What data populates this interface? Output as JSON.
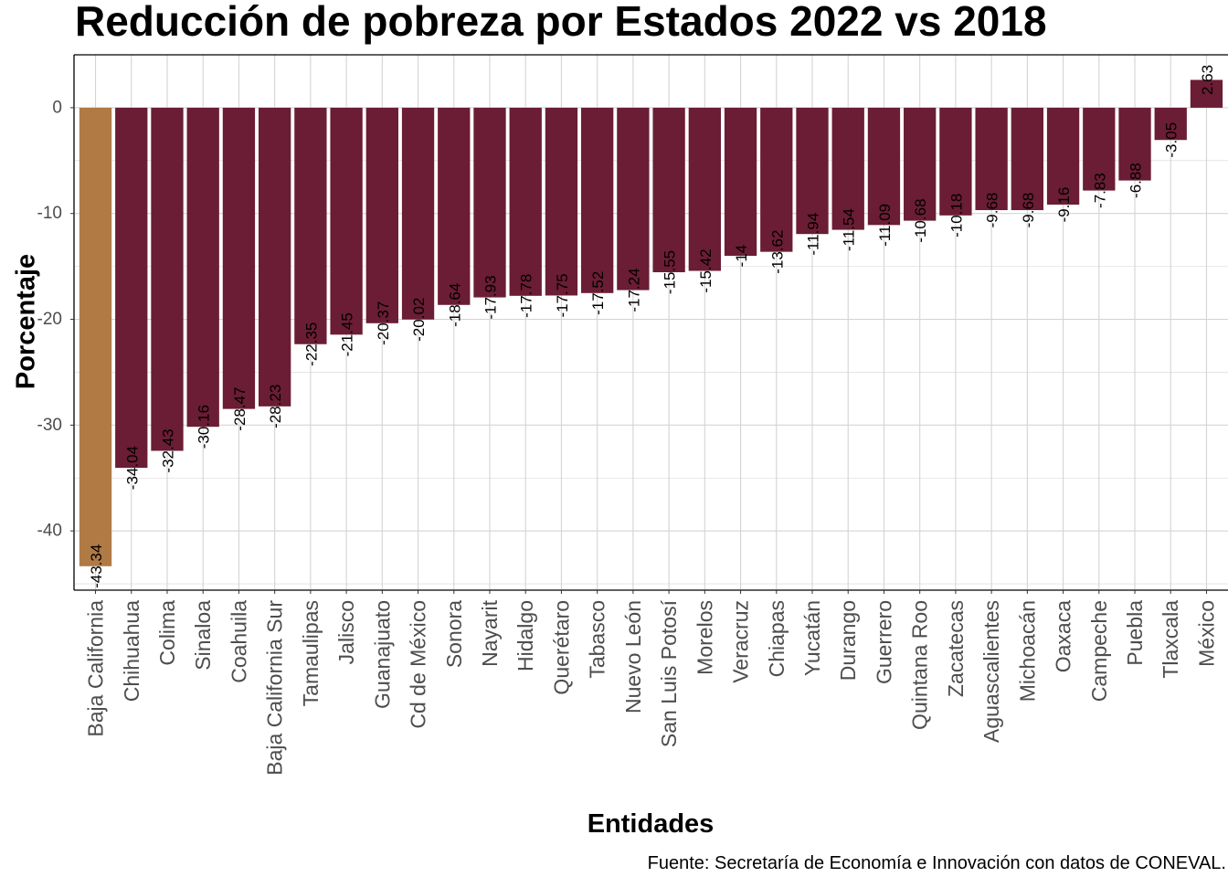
{
  "chart_data": {
    "type": "bar",
    "title": "Reducción de pobreza por Estados 2022 vs 2018",
    "xlabel": "Entidades",
    "ylabel": "Porcentaje",
    "caption": "Fuente: Secretaría de Economía e Innovación con datos de CONEVAL.",
    "categories": [
      "Baja California",
      "Chihuahua",
      "Colima",
      "Sinaloa",
      "Coahuila",
      "Baja California Sur",
      "Tamaulipas",
      "Jalisco",
      "Guanajuato",
      "Cd de México",
      "Sonora",
      "Nayarit",
      "Hidalgo",
      "Querétaro",
      "Tabasco",
      "Nuevo León",
      "San Luis Potosí",
      "Morelos",
      "Veracruz",
      "Chiapas",
      "Yucatán",
      "Durango",
      "Guerrero",
      "Quintana Roo",
      "Zacatecas",
      "Aguascalientes",
      "Michoacán",
      "Oaxaca",
      "Campeche",
      "Puebla",
      "Tlaxcala",
      "México"
    ],
    "values": [
      -43.34,
      -34.04,
      -32.43,
      -30.16,
      -28.47,
      -28.23,
      -22.35,
      -21.45,
      -20.37,
      -20.02,
      -18.64,
      -17.93,
      -17.78,
      -17.75,
      -17.52,
      -17.24,
      -15.55,
      -15.42,
      -14,
      -13.62,
      -11.94,
      -11.54,
      -11.09,
      -10.68,
      -10.18,
      -9.68,
      -9.68,
      -9.16,
      -7.83,
      -6.88,
      -3.05,
      2.63
    ],
    "value_labels": [
      "-43.34",
      "-34.04",
      "-32.43",
      "-30.16",
      "-28.47",
      "-28.23",
      "-22.35",
      "-21.45",
      "-20.37",
      "-20.02",
      "-18.64",
      "-17.93",
      "-17.78",
      "-17.75",
      "-17.52",
      "-17.24",
      "-15.55",
      "-15.42",
      "-14",
      "-13.62",
      "-11.94",
      "-11.54",
      "-11.09",
      "-10.68",
      "-10.18",
      "-9.68",
      "-9.68",
      "-9.16",
      "-7.83",
      "-6.88",
      "-3.05",
      "2.63"
    ],
    "highlight_category": "Baja California",
    "colors": {
      "default": "#6a1d34",
      "highlight": "#b07a45",
      "grid": "#d4d4d4",
      "axis": "#000000"
    },
    "yticks": [
      0,
      -10,
      -20,
      -30,
      -40
    ],
    "ylim": [
      -45.6,
      5
    ],
    "grid": true,
    "legend": "none"
  }
}
